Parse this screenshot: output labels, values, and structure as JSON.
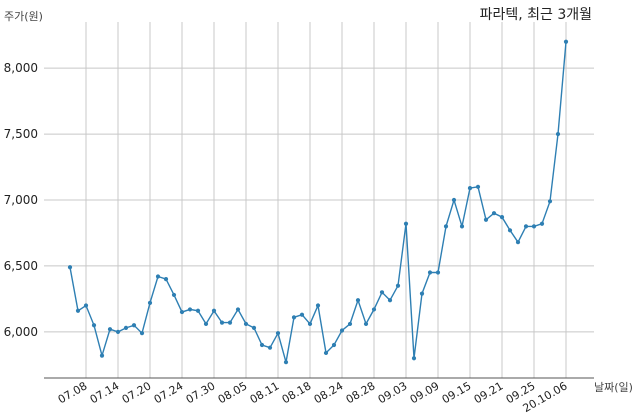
{
  "chart_data": {
    "type": "line",
    "title": "파라텍, 최근 3개월",
    "ylabel": "주가(원)",
    "xlabel": "날짜(일)",
    "ylim": [
      5650,
      8350
    ],
    "yticks": [
      6000,
      6500,
      7000,
      7500,
      8000
    ],
    "ytick_labels": [
      "6,000",
      "6,500",
      "7,000",
      "7,500",
      "8,000"
    ],
    "grid": true,
    "line_color": "#2e7fb3",
    "grid_color": "#c8c8c8",
    "x_tick_labels": [
      "07.08",
      "07.14",
      "07.20",
      "07.24",
      "07.30",
      "08.05",
      "08.11",
      "08.18",
      "08.24",
      "08.28",
      "09.03",
      "09.09",
      "09.15",
      "09.21",
      "09.25",
      "20.10.06"
    ],
    "x_tick_positions": [
      2,
      6,
      10,
      14,
      18,
      22,
      26,
      30,
      34,
      38,
      42,
      46,
      50,
      54,
      58,
      62
    ],
    "series": [
      {
        "values": [
          6490,
          6160,
          6200,
          6050,
          5820,
          6020,
          6000,
          6030,
          6050,
          5990,
          6220,
          6420,
          6400,
          6280,
          6150,
          6170,
          6160,
          6060,
          6160,
          6070,
          6070,
          6170,
          6060,
          6030,
          5900,
          5880,
          5990,
          5770,
          6110,
          6130,
          6060,
          6200,
          5840,
          5900,
          6010,
          6060,
          6240,
          6060,
          6170,
          6300,
          6240,
          6350,
          6820,
          5800,
          6290,
          6450,
          6450,
          6800,
          7000,
          6800,
          7090,
          7100,
          6850,
          6900,
          6870,
          6770,
          6680,
          6800,
          6800,
          6820,
          6990,
          7500,
          8200
        ]
      }
    ]
  }
}
